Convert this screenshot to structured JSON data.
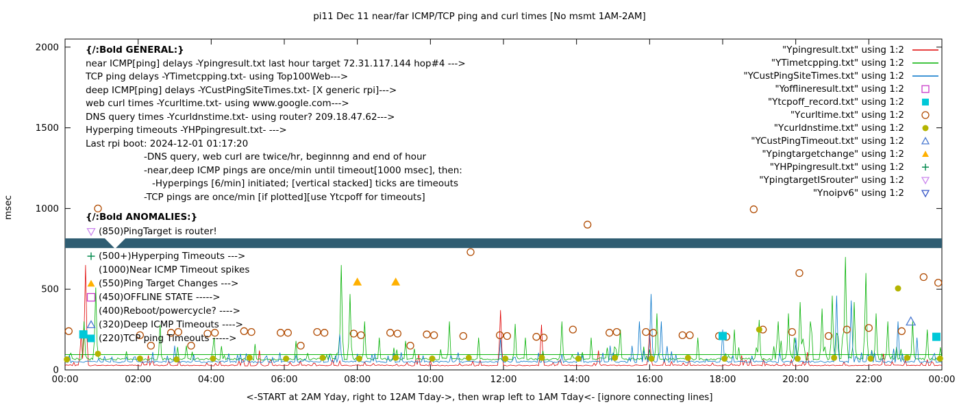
{
  "title": "pi11 Dec 11  near/far ICMP/TCP ping and curl times [No msmt 1AM-2AM]",
  "axis": {
    "ylabel": "msec",
    "xlabel": "<-START at 2AM Yday, right to 12AM Tday->, then wrap left to 1AM Tday<- [ignore connecting lines]",
    "y_ticks": [
      0,
      500,
      1000,
      1500,
      2000
    ],
    "x_tick_labels": [
      "00:00",
      "02:00",
      "04:00",
      "06:00",
      "08:00",
      "10:00",
      "12:00",
      "14:00",
      "16:00",
      "18:00",
      "20:00",
      "22:00",
      "00:00"
    ],
    "y_range": [
      0,
      2050
    ],
    "x_range_hours": [
      0,
      24
    ]
  },
  "legend": {
    "items": [
      {
        "label": "\"Ypingresult.txt\" using 1:2",
        "swatch": "line",
        "color": "#e00000"
      },
      {
        "label": "\"YTimetcpping.txt\" using 1:2",
        "swatch": "line",
        "color": "#00b000"
      },
      {
        "label": "\"YCustPingSiteTimes.txt\" using 1:2",
        "swatch": "line",
        "color": "#0072c8"
      },
      {
        "label": "\"Yofflineresult.txt\" using 1:2",
        "swatch": "square-open",
        "color": "#c838c8"
      },
      {
        "label": "\"Ytcpoff_record.txt\" using 1:2",
        "swatch": "square-filled",
        "color": "#00c8d8"
      },
      {
        "label": "\"Ycurltime.txt\" using 1:2",
        "swatch": "circle-open",
        "color": "#b04a00"
      },
      {
        "label": "\"Ycurldnstime.txt\" using 1:2",
        "swatch": "circle-filled",
        "color": "#b4b400"
      },
      {
        "label": "\"YCustPingTimeout.txt\" using 1:2",
        "swatch": "tri-up-open",
        "color": "#4878d0"
      },
      {
        "label": "\"Ypingtargetchange\" using 1:2",
        "swatch": "tri-up-filled",
        "color": "#ffb000"
      },
      {
        "label": "\"YHPpingresult.txt\" using 1:2",
        "swatch": "plus",
        "color": "#00884c"
      },
      {
        "label": "\"YpingtargetISrouter\" using 1:2",
        "swatch": "tri-down-open",
        "color": "#cc88ee"
      },
      {
        "label": "\"Ynoipv6\" using 1:2",
        "swatch": "tri-down-open",
        "color": "#3858c8"
      }
    ]
  },
  "general": {
    "lines": [
      {
        "text": "{/:Bold GENERAL:}",
        "bold": true,
        "indent": 0
      },
      {
        "text": "near ICMP[ping] delays -Ypingresult.txt last hour target 72.31.117.144 hop#4 --->",
        "indent": 0
      },
      {
        "text": "TCP ping delays -YTimetcpping.txt- using Top100Web--->",
        "indent": 0
      },
      {
        "text": "deep ICMP[ping] delays -YCustPingSiteTimes.txt- [X generic rpi]--->",
        "indent": 0
      },
      {
        "text": "web curl times -Ycurltime.txt- using www.google.com--->",
        "indent": 0
      },
      {
        "text": "DNS query times -Ycurldnstime.txt- using router? 209.18.47.62--->",
        "indent": 0
      },
      {
        "text": "Hyperping timeouts -YHPpingresult.txt- --->",
        "indent": 0
      },
      {
        "text": "Last rpi boot: 2024-12-01 01:17:20",
        "indent": 0
      },
      {
        "text": "-DNS query, web curl are twice/hr, beginnng and end of hour",
        "indent": 1
      },
      {
        "text": "-near,deep ICMP pings are once/min until timeout[1000 msec], then:",
        "indent": 1
      },
      {
        "text": "-Hyperpings [6/min] initiated; [vertical stacked] ticks are timeouts",
        "indent": 2
      },
      {
        "text": "-TCP pings are once/min [if plotted][use Ytcpoff for timeouts]",
        "indent": 1
      }
    ]
  },
  "anomalies": {
    "header": "{/:Bold ANOMALIES:}",
    "items": [
      {
        "marker": "tri-down-open",
        "color": "#cc88ee",
        "text": "(850)PingTarget is router!",
        "gap_after": true
      },
      {
        "marker": "plus",
        "color": "#00884c",
        "text": "(500+)Hyperping Timeouts --->"
      },
      {
        "marker": "none",
        "color": "",
        "text": "(1000)Near ICMP Timeout spikes"
      },
      {
        "marker": "tri-up-filled",
        "color": "#ffb000",
        "text": "(550)Ping Target Changes --->"
      },
      {
        "marker": "square-open",
        "color": "#c838c8",
        "text": "(450)OFFLINE STATE ----->"
      },
      {
        "marker": "none",
        "color": "",
        "text": "(400)Reboot/powercycle? ---->"
      },
      {
        "marker": "tri-up-open",
        "color": "#4878d0",
        "text": "(320)Deep ICMP Timeouts ---->"
      },
      {
        "marker": "square-filled",
        "color": "#00c8d8",
        "text": "(220)TCP ping Timeouts ----->"
      }
    ]
  },
  "band": {
    "color": "#2f5d72",
    "y_msec_range": [
      755,
      815
    ],
    "note": "dark horizontal redaction band across full plot width"
  },
  "chart_data": {
    "type": "line",
    "title": "pi11 Dec 11  near/far ICMP/TCP ping and curl times [No msmt 1AM-2AM]",
    "xlabel": "<-START at 2AM Yday, right to 12AM Tday->, then wrap left to 1AM Tday<- [ignore connecting lines]",
    "ylabel": "msec",
    "ylim": [
      0,
      2050
    ],
    "xlim_hours": [
      0,
      24
    ],
    "grid": false,
    "legend_position": "top-right",
    "hlines": [
      {
        "name": "TCP ping flat reference",
        "color": "#00b000",
        "y": 95
      }
    ],
    "line_series": [
      {
        "name": "Ypingresult.txt",
        "color": "#e00000",
        "baseline": 25,
        "noise": 18,
        "seed": 7,
        "busy": [],
        "spikes": [
          [
            0.45,
            230
          ],
          [
            0.55,
            650
          ],
          [
            2.3,
            90
          ],
          [
            5.3,
            120
          ],
          [
            9.7,
            95
          ],
          [
            11.9,
            370
          ],
          [
            13.05,
            280
          ],
          [
            14.6,
            120
          ],
          [
            16.0,
            245
          ],
          [
            18.5,
            90
          ],
          [
            20.3,
            110
          ],
          [
            22.4,
            100
          ]
        ]
      },
      {
        "name": "YTimetcpping.txt",
        "color": "#00b000",
        "baseline": 60,
        "noise": 40,
        "seed": 13,
        "busy": [
          [
            19.3,
            22.7,
            4
          ]
        ],
        "spikes": [
          [
            0.5,
            300
          ],
          [
            0.85,
            510
          ],
          [
            2.6,
            280
          ],
          [
            3.3,
            150
          ],
          [
            4.1,
            200
          ],
          [
            5.2,
            160
          ],
          [
            6.3,
            180
          ],
          [
            7.55,
            650
          ],
          [
            7.8,
            470
          ],
          [
            8.2,
            300
          ],
          [
            8.6,
            200
          ],
          [
            9.3,
            180
          ],
          [
            10.5,
            300
          ],
          [
            11.3,
            200
          ],
          [
            12.3,
            285
          ],
          [
            12.6,
            200
          ],
          [
            13.6,
            300
          ],
          [
            14.4,
            200
          ],
          [
            15.2,
            250
          ],
          [
            16.2,
            350
          ],
          [
            17.3,
            200
          ],
          [
            18.3,
            250
          ],
          [
            19.0,
            310
          ],
          [
            19.5,
            300
          ],
          [
            19.8,
            350
          ],
          [
            20.1,
            420
          ],
          [
            20.4,
            300
          ],
          [
            20.7,
            380
          ],
          [
            21.0,
            460
          ],
          [
            21.35,
            700
          ],
          [
            21.6,
            420
          ],
          [
            21.9,
            600
          ],
          [
            22.2,
            350
          ],
          [
            22.5,
            300
          ],
          [
            23.2,
            300
          ],
          [
            23.6,
            250
          ]
        ]
      },
      {
        "name": "YCustPingSiteTimes.txt",
        "color": "#0072c8",
        "baseline": 45,
        "noise": 30,
        "seed": 29,
        "busy": [
          [
            15.5,
            16.6,
            3
          ],
          [
            20.8,
            23.4,
            2.5
          ]
        ],
        "spikes": [
          [
            3.0,
            150
          ],
          [
            7.5,
            220
          ],
          [
            11.9,
            200
          ],
          [
            14.9,
            150
          ],
          [
            15.7,
            300
          ],
          [
            16.05,
            470
          ],
          [
            16.3,
            300
          ],
          [
            18.0,
            250
          ],
          [
            20.0,
            200
          ],
          [
            21.1,
            460
          ],
          [
            21.5,
            430
          ],
          [
            22.8,
            300
          ],
          [
            23.3,
            200
          ]
        ]
      }
    ],
    "point_series": [
      {
        "name": "Ycurltime.txt",
        "marker": "circle-open",
        "color": "#b04a00",
        "points": [
          [
            0.1,
            240
          ],
          [
            0.9,
            1000
          ],
          [
            2.05,
            215
          ],
          [
            2.35,
            150
          ],
          [
            2.9,
            230
          ],
          [
            3.1,
            235
          ],
          [
            3.45,
            150
          ],
          [
            3.9,
            225
          ],
          [
            4.1,
            230
          ],
          [
            4.9,
            240
          ],
          [
            5.1,
            235
          ],
          [
            5.9,
            230
          ],
          [
            6.1,
            230
          ],
          [
            6.45,
            150
          ],
          [
            6.9,
            235
          ],
          [
            7.1,
            230
          ],
          [
            7.9,
            225
          ],
          [
            8.1,
            215
          ],
          [
            8.9,
            230
          ],
          [
            9.1,
            225
          ],
          [
            9.45,
            150
          ],
          [
            9.9,
            220
          ],
          [
            10.1,
            215
          ],
          [
            10.9,
            210
          ],
          [
            11.1,
            730
          ],
          [
            11.9,
            215
          ],
          [
            12.1,
            210
          ],
          [
            12.9,
            205
          ],
          [
            13.1,
            200
          ],
          [
            13.9,
            250
          ],
          [
            14.3,
            900
          ],
          [
            14.9,
            230
          ],
          [
            15.1,
            235
          ],
          [
            15.9,
            235
          ],
          [
            16.1,
            230
          ],
          [
            16.9,
            215
          ],
          [
            17.1,
            215
          ],
          [
            17.9,
            210
          ],
          [
            18.1,
            205
          ],
          [
            18.85,
            995
          ],
          [
            19.1,
            250
          ],
          [
            19.9,
            235
          ],
          [
            20.1,
            600
          ],
          [
            20.9,
            210
          ],
          [
            21.4,
            250
          ],
          [
            22.0,
            260
          ],
          [
            22.9,
            240
          ],
          [
            23.5,
            575
          ],
          [
            23.9,
            540
          ]
        ]
      },
      {
        "name": "Ycurldnstime.txt",
        "marker": "circle-filled",
        "color": "#b4b400",
        "points": [
          [
            0.05,
            65
          ],
          [
            0.9,
            100
          ],
          [
            2.05,
            70
          ],
          [
            3.05,
            65
          ],
          [
            4.05,
            70
          ],
          [
            5.05,
            75
          ],
          [
            6.05,
            70
          ],
          [
            7.05,
            75
          ],
          [
            8.05,
            70
          ],
          [
            9.05,
            75
          ],
          [
            10.05,
            70
          ],
          [
            11.05,
            75
          ],
          [
            12.05,
            70
          ],
          [
            13.05,
            75
          ],
          [
            14.05,
            70
          ],
          [
            15.05,
            75
          ],
          [
            16.05,
            70
          ],
          [
            17.05,
            75
          ],
          [
            18.05,
            70
          ],
          [
            19.0,
            250
          ],
          [
            20.05,
            70
          ],
          [
            21.05,
            75
          ],
          [
            22.05,
            70
          ],
          [
            22.8,
            505
          ],
          [
            23.05,
            75
          ],
          [
            23.95,
            70
          ]
        ]
      },
      {
        "name": "Ytcpoff_record.txt",
        "marker": "square-filled",
        "color": "#00c8d8",
        "points": [
          [
            0.5,
            220
          ],
          [
            18.0,
            210
          ],
          [
            23.85,
            205
          ]
        ]
      },
      {
        "name": "Ypingtargetchange",
        "marker": "tri-up-filled",
        "color": "#ffb000",
        "points": [
          [
            8.0,
            545
          ],
          [
            9.05,
            545
          ]
        ]
      },
      {
        "name": "YCustPingTimeout.txt",
        "marker": "tri-up-open",
        "color": "#4878d0",
        "points": [
          [
            23.15,
            300
          ]
        ]
      }
    ]
  }
}
